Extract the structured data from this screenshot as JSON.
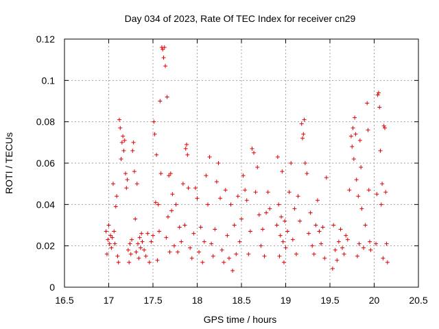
{
  "chart_data": {
    "type": "scatter",
    "title": "Day 034 of 2023, Rate Of TEC Index for receiver cn29",
    "xlabel": "GPS time / hours",
    "ylabel": "ROTI / TECUs",
    "xlim": [
      16.5,
      20.5
    ],
    "ylim": [
      0,
      0.12
    ],
    "x_ticks": [
      16.5,
      17,
      17.5,
      18,
      18.5,
      19,
      19.5,
      20,
      20.5
    ],
    "x_tick_labels": [
      "16.5",
      "17",
      "17.5",
      "18",
      "18.5",
      "19",
      "19.5",
      "20",
      "20.5"
    ],
    "y_ticks": [
      0,
      0.02,
      0.04,
      0.06,
      0.08,
      0.1,
      0.12
    ],
    "y_tick_labels": [
      "0",
      "0.02",
      "0.04",
      "0.06",
      "0.08",
      "0.1",
      "0.12"
    ],
    "grid": true,
    "marker": "+",
    "color": "#e00000",
    "series": [
      {
        "name": "ROTI",
        "points": [
          [
            16.97,
            0.027
          ],
          [
            16.98,
            0.016
          ],
          [
            16.99,
            0.023
          ],
          [
            17.0,
            0.03
          ],
          [
            17.01,
            0.021
          ],
          [
            17.02,
            0.025
          ],
          [
            17.03,
            0.019
          ],
          [
            17.04,
            0.024
          ],
          [
            17.05,
            0.05
          ],
          [
            17.06,
            0.027
          ],
          [
            17.07,
            0.021
          ],
          [
            17.08,
            0.039
          ],
          [
            17.09,
            0.044
          ],
          [
            17.1,
            0.015
          ],
          [
            17.11,
            0.012
          ],
          [
            17.12,
            0.081
          ],
          [
            17.13,
            0.077
          ],
          [
            17.14,
            0.062
          ],
          [
            17.15,
            0.07
          ],
          [
            17.16,
            0.073
          ],
          [
            17.17,
            0.066
          ],
          [
            17.18,
            0.071
          ],
          [
            17.19,
            0.055
          ],
          [
            17.2,
            0.048
          ],
          [
            17.21,
            0.052
          ],
          [
            17.22,
            0.018
          ],
          [
            17.23,
            0.012
          ],
          [
            17.24,
            0.021
          ],
          [
            17.25,
            0.016
          ],
          [
            17.26,
            0.023
          ],
          [
            17.27,
            0.066
          ],
          [
            17.28,
            0.07
          ],
          [
            17.29,
            0.056
          ],
          [
            17.3,
            0.033
          ],
          [
            17.31,
            0.017
          ],
          [
            17.32,
            0.05
          ],
          [
            17.33,
            0.021
          ],
          [
            17.34,
            0.014
          ],
          [
            17.35,
            0.024
          ],
          [
            17.36,
            0.019
          ],
          [
            17.37,
            0.026
          ],
          [
            17.38,
            0.022
          ],
          [
            17.4,
            0.018
          ],
          [
            17.42,
            0.015
          ],
          [
            17.44,
            0.026
          ],
          [
            17.46,
            0.012
          ],
          [
            17.48,
            0.022
          ],
          [
            17.5,
            0.025
          ],
          [
            17.51,
            0.08
          ],
          [
            17.52,
            0.074
          ],
          [
            17.53,
            0.041
          ],
          [
            17.54,
            0.064
          ],
          [
            17.55,
            0.013
          ],
          [
            17.56,
            0.04
          ],
          [
            17.57,
            0.027
          ],
          [
            17.58,
            0.09
          ],
          [
            17.59,
            0.055
          ],
          [
            17.6,
            0.116
          ],
          [
            17.61,
            0.115
          ],
          [
            17.62,
            0.111
          ],
          [
            17.63,
            0.116
          ],
          [
            17.64,
            0.107
          ],
          [
            17.65,
            0.024
          ],
          [
            17.66,
            0.092
          ],
          [
            17.67,
            0.034
          ],
          [
            17.68,
            0.054
          ],
          [
            17.69,
            0.017
          ],
          [
            17.7,
            0.055
          ],
          [
            17.71,
            0.037
          ],
          [
            17.72,
            0.045
          ],
          [
            17.74,
            0.02
          ],
          [
            17.76,
            0.04
          ],
          [
            17.78,
            0.017
          ],
          [
            17.8,
            0.029
          ],
          [
            17.82,
            0.022
          ],
          [
            17.84,
            0.05
          ],
          [
            17.86,
            0.03
          ],
          [
            17.87,
            0.067
          ],
          [
            17.88,
            0.069
          ],
          [
            17.89,
            0.064
          ],
          [
            17.9,
            0.048
          ],
          [
            17.92,
            0.019
          ],
          [
            17.94,
            0.014
          ],
          [
            17.96,
            0.026
          ],
          [
            17.98,
            0.048
          ],
          [
            18.0,
            0.043
          ],
          [
            18.02,
            0.017
          ],
          [
            18.04,
            0.029
          ],
          [
            18.06,
            0.012
          ],
          [
            18.08,
            0.022
          ],
          [
            18.1,
            0.054
          ],
          [
            18.12,
            0.04
          ],
          [
            18.14,
            0.063
          ],
          [
            18.16,
            0.021
          ],
          [
            18.18,
            0.015
          ],
          [
            18.2,
            0.028
          ],
          [
            18.22,
            0.051
          ],
          [
            18.24,
            0.06
          ],
          [
            18.26,
            0.043
          ],
          [
            18.28,
            0.018
          ],
          [
            18.3,
            0.012
          ],
          [
            18.32,
            0.047
          ],
          [
            18.34,
            0.025
          ],
          [
            18.36,
            0.014
          ],
          [
            18.38,
            0.04
          ],
          [
            18.4,
            0.008
          ],
          [
            18.42,
            0.03
          ],
          [
            18.44,
            0.016
          ],
          [
            18.46,
            0.044
          ],
          [
            18.48,
            0.022
          ],
          [
            18.5,
            0.033
          ],
          [
            18.52,
            0.054
          ],
          [
            18.54,
            0.047
          ],
          [
            18.56,
            0.042
          ],
          [
            18.58,
            0.016
          ],
          [
            18.6,
            0.027
          ],
          [
            18.62,
            0.067
          ],
          [
            18.64,
            0.065
          ],
          [
            18.66,
            0.046
          ],
          [
            18.68,
            0.058
          ],
          [
            18.7,
            0.035
          ],
          [
            18.72,
            0.02
          ],
          [
            18.74,
            0.028
          ],
          [
            18.76,
            0.015
          ],
          [
            18.78,
            0.036
          ],
          [
            18.8,
            0.046
          ],
          [
            18.82,
            0.038
          ],
          [
            18.9,
            0.03
          ],
          [
            18.91,
            0.063
          ],
          [
            18.92,
            0.04
          ],
          [
            18.93,
            0.015
          ],
          [
            18.94,
            0.025
          ],
          [
            18.95,
            0.034
          ],
          [
            18.96,
            0.056
          ],
          [
            18.97,
            0.022
          ],
          [
            18.98,
            0.012
          ],
          [
            18.99,
            0.032
          ],
          [
            19.0,
            0.019
          ],
          [
            19.02,
            0.027
          ],
          [
            19.04,
            0.046
          ],
          [
            19.06,
            0.06
          ],
          [
            19.08,
            0.023
          ],
          [
            19.1,
            0.038
          ],
          [
            19.12,
            0.016
          ],
          [
            19.14,
            0.044
          ],
          [
            19.16,
            0.032
          ],
          [
            19.18,
            0.079
          ],
          [
            19.19,
            0.072
          ],
          [
            19.2,
            0.074
          ],
          [
            19.21,
            0.081
          ],
          [
            19.22,
            0.06
          ],
          [
            19.24,
            0.055
          ],
          [
            19.26,
            0.026
          ],
          [
            19.28,
            0.036
          ],
          [
            19.3,
            0.02
          ],
          [
            19.32,
            0.016
          ],
          [
            19.34,
            0.03
          ],
          [
            19.36,
            0.042
          ],
          [
            19.38,
            0.027
          ],
          [
            19.4,
            0.021
          ],
          [
            19.42,
            0.029
          ],
          [
            19.44,
            0.014
          ],
          [
            19.46,
            0.053
          ],
          [
            19.53,
            0.009
          ],
          [
            19.54,
            0.03
          ],
          [
            19.56,
            0.018
          ],
          [
            19.58,
            0.013
          ],
          [
            19.6,
            0.022
          ],
          [
            19.62,
            0.028
          ],
          [
            19.64,
            0.019
          ],
          [
            19.66,
            0.016
          ],
          [
            19.68,
            0.025
          ],
          [
            19.7,
            0.023
          ],
          [
            19.72,
            0.047
          ],
          [
            19.74,
            0.073
          ],
          [
            19.75,
            0.068
          ],
          [
            19.76,
            0.077
          ],
          [
            19.77,
            0.062
          ],
          [
            19.78,
            0.082
          ],
          [
            19.79,
            0.074
          ],
          [
            19.8,
            0.052
          ],
          [
            19.81,
            0.015
          ],
          [
            19.82,
            0.044
          ],
          [
            19.83,
            0.021
          ],
          [
            19.84,
            0.071
          ],
          [
            19.85,
            0.058
          ],
          [
            19.86,
            0.038
          ],
          [
            19.88,
            0.019
          ],
          [
            19.9,
            0.03
          ],
          [
            19.92,
            0.089
          ],
          [
            19.93,
            0.076
          ],
          [
            19.94,
            0.047
          ],
          [
            19.95,
            0.022
          ],
          [
            19.96,
            0.018
          ],
          [
            20.02,
            0.021
          ],
          [
            20.03,
            0.045
          ],
          [
            20.04,
            0.093
          ],
          [
            20.05,
            0.094
          ],
          [
            20.06,
            0.087
          ],
          [
            20.07,
            0.066
          ],
          [
            20.08,
            0.04
          ],
          [
            20.09,
            0.05
          ],
          [
            20.1,
            0.014
          ],
          [
            20.11,
            0.078
          ],
          [
            20.12,
            0.077
          ],
          [
            20.13,
            0.046
          ],
          [
            20.14,
            0.021
          ],
          [
            20.15,
            0.012
          ]
        ]
      }
    ]
  }
}
